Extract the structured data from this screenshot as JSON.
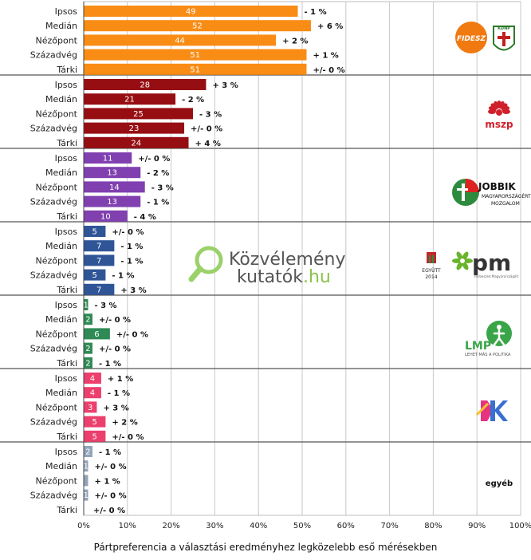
{
  "chart_data": {
    "type": "bar",
    "orientation": "horizontal",
    "title": "Pártpreferencia a választási eredményhez legközelebb eső mérésekben",
    "xlim": [
      0,
      100
    ],
    "xticks": [
      "0%",
      "10%",
      "20%",
      "30%",
      "40%",
      "50%",
      "60%",
      "70%",
      "80%",
      "90%",
      "100%"
    ],
    "grid": true,
    "watermark": [
      "Közvélemény",
      "kutatók",
      ".hu"
    ],
    "groups": [
      {
        "logo_texts": [
          "FIDESZ",
          "KDNP"
        ],
        "color": "#f98c15",
        "categories": [
          "Ipsos",
          "Medián",
          "Nézőpont",
          "Századvég",
          "Tárki"
        ],
        "values": [
          49,
          52,
          44,
          51,
          51
        ],
        "changes": [
          "- 1 %",
          "+ 6 %",
          "+ 2 %",
          "+ 1 %",
          "+/- 0 %"
        ]
      },
      {
        "logo_texts": [
          "mszp"
        ],
        "color": "#960e12",
        "categories": [
          "Ipsos",
          "Medián",
          "Nézőpont",
          "Századvég",
          "Tárki"
        ],
        "values": [
          28,
          21,
          25,
          23,
          24
        ],
        "changes": [
          "+ 3 %",
          "- 2 %",
          "- 3 %",
          "+/- 0 %",
          "+ 4 %"
        ]
      },
      {
        "logo_texts": [
          "JOBBIK",
          "MAGYARORSZÁGÉRT",
          "MOZGALOM"
        ],
        "color": "#8040b0",
        "categories": [
          "Ipsos",
          "Medián",
          "Nézőpont",
          "Századvég",
          "Tárki"
        ],
        "values": [
          11,
          13,
          14,
          13,
          10
        ],
        "changes": [
          "+/- 0 %",
          "- 2 %",
          "- 3 %",
          "- 1 %",
          "- 4 %"
        ]
      },
      {
        "logo_texts": [
          "EGYÜTT",
          "2014",
          "pm",
          "Párbeszéd Magyarországért"
        ],
        "color": "#2f5597",
        "categories": [
          "Ipsos",
          "Medián",
          "Nézőpont",
          "Századvég",
          "Tárki"
        ],
        "values": [
          5,
          7,
          7,
          5,
          7
        ],
        "changes": [
          "+/- 0 %",
          "- 1 %",
          "- 1 %",
          "- 1 %",
          "+ 3 %"
        ]
      },
      {
        "logo_texts": [
          "LMP",
          "LEHET MÁS A POLITIKA"
        ],
        "color": "#2f8a55",
        "categories": [
          "Ipsos",
          "Medián",
          "Nézőpont",
          "Századvég",
          "Tárki"
        ],
        "values": [
          1,
          2,
          6,
          2,
          2
        ],
        "changes": [
          "- 3 %",
          "+/- 0 %",
          "+/- 0 %",
          "+/- 0 %",
          "- 1 %"
        ]
      },
      {
        "logo_texts": [
          "DK"
        ],
        "color": "#ec3f6d",
        "categories": [
          "Ipsos",
          "Medián",
          "Nézőpont",
          "Századvég",
          "Tárki"
        ],
        "values": [
          4,
          4,
          3,
          5,
          5
        ],
        "changes": [
          "+ 1 %",
          "- 1 %",
          "+ 3 %",
          "+ 2 %",
          "+/- 0 %"
        ]
      },
      {
        "logo_texts": [
          "egyéb"
        ],
        "color": "#93a4b8",
        "categories": [
          "Ipsos",
          "Medián",
          "Nézőpont",
          "Századvég",
          "Tárki"
        ],
        "values": [
          2,
          1,
          1,
          1,
          0
        ],
        "value_labels": [
          "2",
          "1",
          "",
          "1",
          ""
        ],
        "changes": [
          "- 1 %",
          "+/- 0 %",
          "+ 1 %",
          "+/- 0 %",
          "+/- 0 %"
        ]
      }
    ]
  }
}
